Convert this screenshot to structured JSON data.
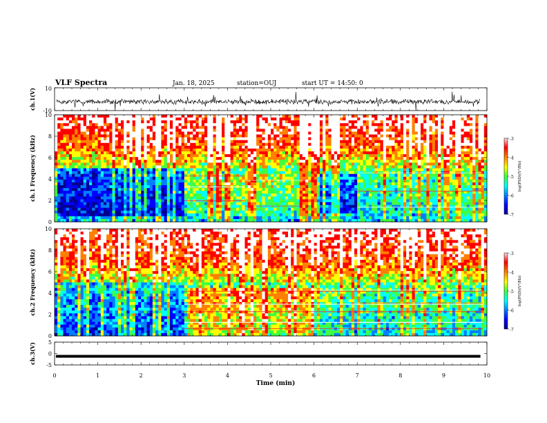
{
  "header": {
    "title": "VLF Spectra",
    "date": "Jan. 18, 2025",
    "station": "station=OUJ",
    "start": "start UT =  14:50: 0"
  },
  "colorbar": {
    "label": "log(PSD)(V²/Hz)",
    "ticks": [
      "-3",
      "-4",
      "-5",
      "-6",
      "-7"
    ],
    "range": [
      -7,
      -3
    ],
    "colors": [
      "#000090",
      "#0000ff",
      "#0080ff",
      "#00ffff",
      "#40ff40",
      "#ffff00",
      "#ff8000",
      "#ff0000",
      "#ffffff"
    ]
  },
  "chart_data": [
    {
      "type": "line",
      "panel": "ch1-waveform",
      "ylabel": "ch.1(V)",
      "ylim": [
        -10,
        10
      ],
      "yticklabels": [
        "10",
        "-10"
      ],
      "description_level": -2.2,
      "line_color": "#000000"
    },
    {
      "type": "heatmap",
      "panel": "ch1-spectrogram",
      "ylabel": "ch.1 Frequency (kHz)",
      "ylim": [
        0,
        10
      ],
      "yticklabels": [
        "0",
        "2",
        "4",
        "6",
        "8",
        "10"
      ],
      "xlim": [
        0,
        10
      ]
    },
    {
      "type": "heatmap",
      "panel": "ch2-spectrogram",
      "ylabel": "ch.2 Frequency (kHz)",
      "ylim": [
        0,
        10
      ],
      "yticklabels": [
        "0",
        "2",
        "4",
        "6",
        "8",
        "10"
      ],
      "xlim": [
        0,
        10
      ]
    },
    {
      "type": "line",
      "panel": "ch3-waveform",
      "ylabel": "ch.3(V)",
      "ylim": [
        -5,
        5
      ],
      "yticklabels": [
        "5",
        "0",
        "-5"
      ],
      "level": -1.2,
      "line_color": "#000000"
    }
  ],
  "xaxis": {
    "label": "Time (min)",
    "ticklabels": [
      "0",
      "1",
      "2",
      "3",
      "4",
      "5",
      "6",
      "7",
      "8",
      "9",
      "10"
    ],
    "range": [
      0,
      10
    ]
  }
}
